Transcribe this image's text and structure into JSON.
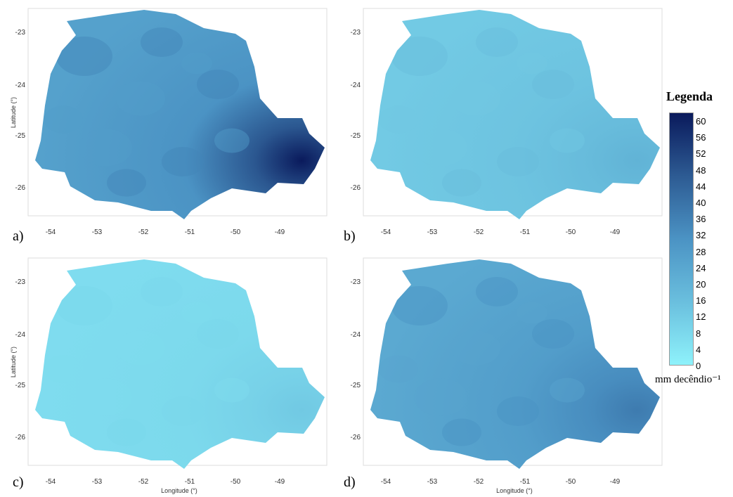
{
  "panels": [
    {
      "label": "a)",
      "scale_level": 30,
      "east_level": 60,
      "show_ylabel": true,
      "show_xlabel": false
    },
    {
      "label": "b)",
      "scale_level": 15,
      "east_level": 20,
      "show_ylabel": false,
      "show_xlabel": false
    },
    {
      "label": "c)",
      "scale_level": 8,
      "east_level": 13,
      "show_ylabel": true,
      "show_xlabel": true
    },
    {
      "label": "d)",
      "scale_level": 27,
      "east_level": 36,
      "show_ylabel": false,
      "show_xlabel": true
    }
  ],
  "axes": {
    "x_ticks": [
      "-54",
      "-53",
      "-52",
      "-51",
      "-50",
      "-49"
    ],
    "y_ticks": [
      "-23",
      "-24",
      "-25",
      "-26"
    ],
    "xlabel": "Longitude (°)",
    "ylabel": "Latitude (°)"
  },
  "legend": {
    "title": "Legenda",
    "ticks": [
      "60",
      "56",
      "52",
      "48",
      "44",
      "40",
      "36",
      "32",
      "28",
      "24",
      "20",
      "16",
      "12",
      "8",
      "4",
      "0"
    ],
    "unit": "mm decêndio⁻¹",
    "color_low": "#8ef2fb",
    "color_mid": "#4b93c4",
    "color_high": "#0a1a5c"
  }
}
